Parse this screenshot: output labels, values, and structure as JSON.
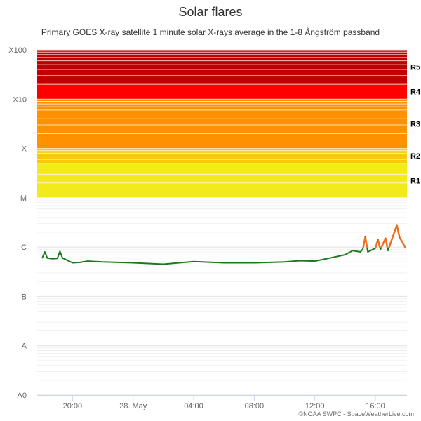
{
  "chart_data": {
    "type": "line",
    "title": "Solar flares",
    "subtitle": "Primary GOES X-ray satellite 1 minute solar X-rays average in the 1-8 Ångström passband",
    "credits": "©NOAA SWPC - SpaceWeatherLive.com",
    "y_scale": "log",
    "ylim": [
      "A0",
      "X100"
    ],
    "y_ticks": [
      "X100",
      "X10",
      "X",
      "M",
      "C",
      "B",
      "A",
      "A0"
    ],
    "x_ticks": [
      "20:00",
      "28. May",
      "04:00",
      "08:00",
      "12:00",
      "16:00"
    ],
    "xlim": [
      "27 May 17:40",
      "28 May 18:05"
    ],
    "grid": true,
    "legend": "none",
    "bands": [
      {
        "label": "R1",
        "from": "M1",
        "to": "M5",
        "color": "#f2ea1b"
      },
      {
        "label": "R2",
        "from": "M5",
        "to": "X1",
        "color": "#f9c80e"
      },
      {
        "label": "R3",
        "from": "X1",
        "to": "X10",
        "color": "#ff9100"
      },
      {
        "label": "R4",
        "from": "X10",
        "to": "X20",
        "color": "#ff0000"
      },
      {
        "label": "R5",
        "from": "X20",
        "to": "X100",
        "color": "#c00000"
      }
    ],
    "series": [
      {
        "color": "#1a7a1a",
        "highlight_color": "#f07020",
        "highlight_above": "C1.0",
        "points": [
          [
            "27 May 18:00",
            "B6.0"
          ],
          [
            "27 May 18:10",
            "B8.0"
          ],
          [
            "27 May 18:20",
            "B6.0"
          ],
          [
            "27 May 18:40",
            "B5.8"
          ],
          [
            "27 May 19:00",
            "B5.9"
          ],
          [
            "27 May 19:10",
            "B8.2"
          ],
          [
            "27 May 19:20",
            "B6.0"
          ],
          [
            "27 May 20:00",
            "B4.8"
          ],
          [
            "27 May 20:30",
            "B4.9"
          ],
          [
            "27 May 21:00",
            "B5.2"
          ],
          [
            "27 May 22:00",
            "B5.0"
          ],
          [
            "28 May 00:00",
            "B4.8"
          ],
          [
            "28 May 02:00",
            "B4.5"
          ],
          [
            "28 May 04:00",
            "B5.1"
          ],
          [
            "28 May 06:00",
            "B4.8"
          ],
          [
            "28 May 08:00",
            "B4.8"
          ],
          [
            "28 May 10:00",
            "B5.0"
          ],
          [
            "28 May 11:00",
            "B5.3"
          ],
          [
            "28 May 12:00",
            "B5.2"
          ],
          [
            "28 May 13:00",
            "B6.0"
          ],
          [
            "28 May 14:00",
            "B7.0"
          ],
          [
            "28 May 14:30",
            "B8.5"
          ],
          [
            "28 May 15:00",
            "B8.0"
          ],
          [
            "28 May 15:10",
            "B9.0"
          ],
          [
            "28 May 15:20",
            "C1.6"
          ],
          [
            "28 May 15:30",
            "B8.0"
          ],
          [
            "28 May 16:00",
            "B9.5"
          ],
          [
            "28 May 16:10",
            "C1.4"
          ],
          [
            "28 May 16:20",
            "B9.0"
          ],
          [
            "28 May 16:40",
            "C1.5"
          ],
          [
            "28 May 16:50",
            "B8.5"
          ],
          [
            "28 May 17:25",
            "C2.8"
          ],
          [
            "28 May 17:35",
            "C1.6"
          ],
          [
            "28 May 18:00",
            "B9.5"
          ]
        ]
      }
    ]
  }
}
